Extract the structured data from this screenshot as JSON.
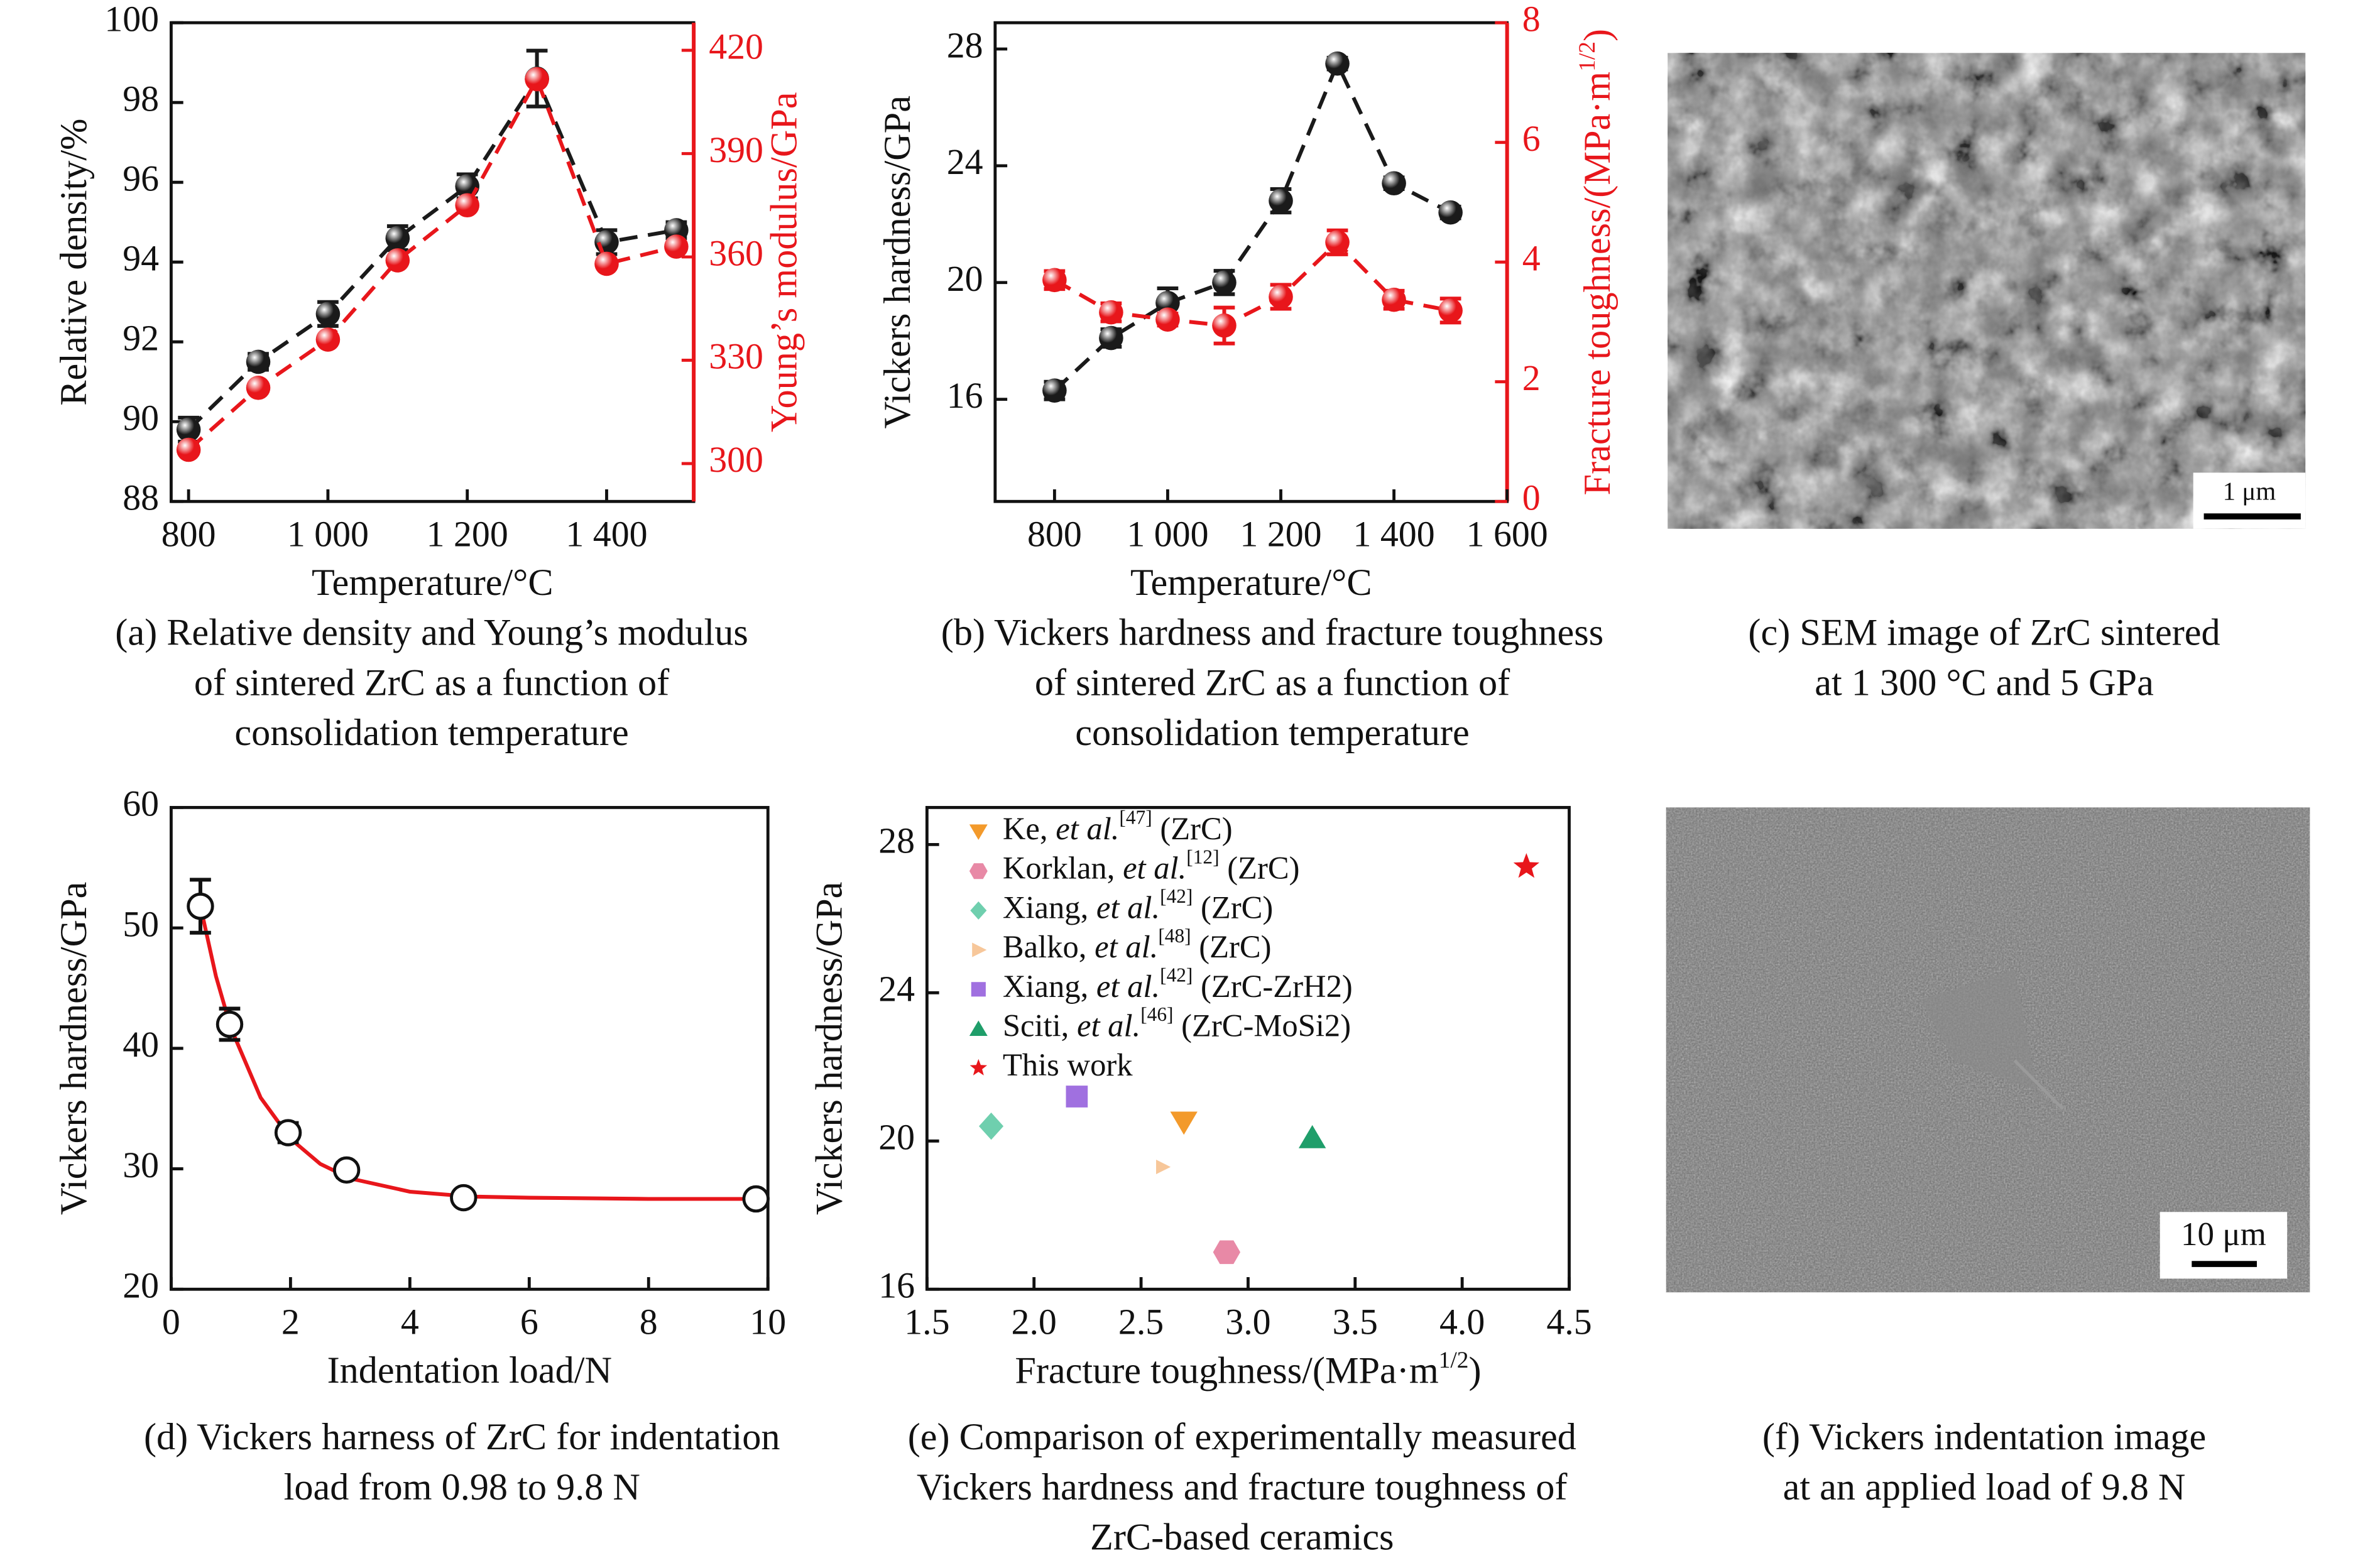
{
  "chart_data": [
    {
      "type": "line",
      "x": [
        800,
        900,
        1000,
        1100,
        1200,
        1300,
        1400,
        1500
      ],
      "xlim": [
        775,
        1525
      ],
      "xticks": [
        800,
        {
          "value": 1000,
          "label": "1 000"
        },
        {
          "value": 1200,
          "label": "1 200"
        },
        {
          "value": 1400,
          "label": "1 400"
        }
      ],
      "ylim": [
        88,
        100
      ],
      "yticks": [
        88,
        90,
        92,
        94,
        96,
        98,
        100
      ],
      "y2lim": [
        289,
        428
      ],
      "y2ticks": [
        300,
        330,
        360,
        390,
        420
      ],
      "y2color": "#e8161b",
      "xlabel": "Temperature/°C",
      "ylabel": "Relative density/%",
      "y2label": "Young’s modulus/GPa",
      "series": [
        {
          "values": [
            89.8,
            91.5,
            92.7,
            94.6,
            95.9,
            98.6,
            94.5,
            94.8
          ],
          "errors": [
            0.3,
            0.2,
            0.3,
            0.3,
            0.3,
            0.7,
            0.3,
            0.2
          ],
          "color": "#1a1a1a",
          "marker": "sphere",
          "line": "dashed"
        },
        {
          "axis": "y2",
          "values": [
            304,
            322,
            336,
            359,
            375,
            411.6,
            358,
            363
          ],
          "color": "#e8161b",
          "marker": "sphere",
          "line": "dashed"
        }
      ],
      "caption": [
        "(a) Relative density and Young’s modulus",
        "of sintered ZrC as a function of",
        "consolidation temperature"
      ]
    },
    {
      "type": "line",
      "x": [
        800,
        900,
        1000,
        1100,
        1200,
        1300,
        1400,
        1500
      ],
      "xlim": [
        695,
        1600
      ],
      "xticks": [
        800,
        {
          "value": 1000,
          "label": "1 000"
        },
        {
          "value": 1200,
          "label": "1 200"
        },
        {
          "value": 1400,
          "label": "1 400"
        },
        {
          "value": 1600,
          "label": "1 600"
        }
      ],
      "ylim": [
        12.5,
        28.9
      ],
      "yticks": [
        16,
        20,
        24,
        28
      ],
      "y2lim": [
        0,
        8
      ],
      "y2ticks": [
        0,
        2,
        4,
        6,
        8
      ],
      "y2color": "#e8161b",
      "xlabel": "Temperature/°C",
      "ylabel": "Vickers hardness/GPa",
      "y2label": [
        "Fracture toughness/(MPa·m",
        {
          "sup": "1/2"
        },
        ")"
      ],
      "series": [
        {
          "values": [
            16.3,
            18.1,
            19.3,
            20.0,
            22.8,
            27.5,
            23.4,
            22.4
          ],
          "errors": [
            0.3,
            0.3,
            0.5,
            0.4,
            0.4,
            0.2,
            0.2,
            0.2
          ],
          "color": "#1a1a1a",
          "marker": "sphere",
          "line": "dashed"
        },
        {
          "axis": "y2",
          "values": [
            3.7,
            3.16,
            3.04,
            2.94,
            3.42,
            4.33,
            3.37,
            3.19
          ],
          "errors": [
            0.15,
            0.15,
            0.1,
            0.3,
            0.2,
            0.2,
            0.15,
            0.2
          ],
          "color": "#e8161b",
          "marker": "sphere",
          "line": "dashed"
        }
      ],
      "caption": [
        "(b) Vickers hardness and fracture toughness",
        "of sintered ZrC as a function of",
        "consolidation temperature"
      ]
    },
    {
      "type": "image",
      "scale_label": "1 μm",
      "caption": [
        "(c) SEM image of ZrC sintered",
        "at 1 300 °C and 5 GPa"
      ]
    },
    {
      "type": "line",
      "x": [
        0.49,
        0.98,
        1.96,
        2.94,
        4.9,
        9.8
      ],
      "xlim": [
        0,
        10
      ],
      "xticks": [
        0,
        2,
        4,
        6,
        8,
        10
      ],
      "ylim": [
        20,
        60
      ],
      "yticks": [
        20,
        30,
        40,
        50,
        60
      ],
      "xlabel": "Indentation load/N",
      "ylabel": "Vickers hardness/GPa",
      "series": [
        {
          "values": [
            51.8,
            42,
            33,
            29.9,
            27.6,
            27.5
          ],
          "errors": [
            2.2,
            1.3,
            0.8,
            0.6,
            0.5,
            0.4
          ],
          "color": "#111111",
          "marker": "open"
        }
      ],
      "fit": {
        "x": [
          0.5,
          0.75,
          1,
          1.5,
          2,
          2.5,
          3,
          4,
          5,
          6,
          8,
          9.8
        ],
        "values": [
          51.6,
          46.0,
          41.7,
          35.9,
          32.5,
          30.4,
          29.2,
          28.1,
          27.7,
          27.6,
          27.5,
          27.5
        ],
        "color": "#e8161b"
      },
      "caption": [
        "(d) Vickers harness of ZrC for indentation",
        "load from 0.98 to 9.8 N"
      ]
    },
    {
      "type": "scatter",
      "xlim": [
        1.5,
        4.5
      ],
      "xticks": [
        1.5,
        {
          "value": 2,
          "label": "2.0"
        },
        2.5,
        {
          "value": 3,
          "label": "3.0"
        },
        3.5,
        {
          "value": 4,
          "label": "4.0"
        },
        4.5
      ],
      "ylim": [
        16,
        29
      ],
      "yticks": [
        16,
        20,
        24,
        28
      ],
      "xlabel": [
        "Fracture toughness/(MPa·m",
        {
          "sup": "1/2"
        },
        ")"
      ],
      "ylabel": "Vickers hardness/GPa",
      "legend": "upper left",
      "series": [
        {
          "name": [
            "Ke, ",
            {
              "i": "et al."
            },
            {
              "sup": "[47]"
            },
            " (ZrC)"
          ],
          "x": [
            2.7
          ],
          "values": [
            20.5
          ],
          "color": "#f39a2b",
          "marker": "triangle-down"
        },
        {
          "name": [
            "Korklan, ",
            {
              "i": "et al."
            },
            {
              "sup": "[12]"
            },
            " (ZrC)"
          ],
          "x": [
            2.9
          ],
          "values": [
            17.0
          ],
          "color": "#e889a6",
          "marker": "hexagon"
        },
        {
          "name": [
            "Xiang, ",
            {
              "i": "et al."
            },
            {
              "sup": "[42]"
            },
            " (ZrC)"
          ],
          "x": [
            1.8
          ],
          "values": [
            20.4
          ],
          "color": "#6fcfae",
          "marker": "diamond"
        },
        {
          "name": [
            "Balko, ",
            {
              "i": "et al."
            },
            {
              "sup": "[48]"
            },
            " (ZrC)"
          ],
          "x": [
            2.6
          ],
          "values": [
            19.3
          ],
          "color": "#f7c79a",
          "marker": "triangle-right"
        },
        {
          "name": [
            "Xiang, ",
            {
              "i": "et al."
            },
            {
              "sup": "[42]"
            },
            " (ZrC-ZrH2)"
          ],
          "x": [
            2.2
          ],
          "values": [
            21.2
          ],
          "color": "#a070e0",
          "marker": "square"
        },
        {
          "name": [
            "Sciti, ",
            {
              "i": "et al."
            },
            {
              "sup": "[46]"
            },
            " (ZrC-MoSi2)"
          ],
          "x": [
            3.3
          ],
          "values": [
            20.1
          ],
          "color": "#1f9e6a",
          "marker": "triangle"
        },
        {
          "name": "This work",
          "x": [
            4.3
          ],
          "values": [
            27.4
          ],
          "color": "#e8161b",
          "marker": "star"
        }
      ],
      "caption": [
        "(e) Comparison of experimentally measured",
        "Vickers hardness and fracture toughness of",
        "ZrC-based ceramics"
      ]
    },
    {
      "type": "image",
      "scale_label": "10 μm",
      "caption": [
        "(f) Vickers indentation image",
        "at an applied load of 9.8 N"
      ]
    }
  ]
}
